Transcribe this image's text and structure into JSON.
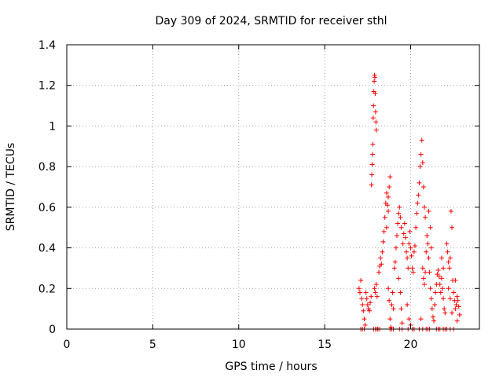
{
  "chart_data": {
    "type": "scatter",
    "title": "Day 309 of 2024, SRMTID for receiver sthl",
    "xlabel": "GPS time / hours",
    "ylabel": "SRMTID / TECUs",
    "xlim": [
      0,
      24
    ],
    "ylim": [
      0,
      1.4
    ],
    "x_ticks": [
      0,
      5,
      10,
      15,
      20
    ],
    "x_tick_labels": [
      "0",
      "5",
      "10",
      "15",
      "20"
    ],
    "y_ticks": [
      0,
      0.2,
      0.4,
      0.6,
      0.8,
      1,
      1.2,
      1.4
    ],
    "y_tick_labels": [
      "0",
      "0.2",
      "0.4",
      "0.6",
      "0.8",
      "1",
      "1.2",
      "1.4"
    ],
    "grid": true,
    "marker": "+",
    "colors": {
      "marker": "#ff0000",
      "grid": "#a0a0a0",
      "axis": "#000000"
    },
    "series": [
      {
        "name": "SRMTID",
        "points": [
          [
            17.0,
            0.2
          ],
          [
            17.05,
            0.18
          ],
          [
            17.1,
            0.24
          ],
          [
            17.15,
            0.15
          ],
          [
            17.2,
            0.12
          ],
          [
            17.25,
            0.09
          ],
          [
            17.3,
            0.05
          ],
          [
            17.35,
            0.02
          ],
          [
            17.1,
            0.0
          ],
          [
            17.2,
            0.0
          ],
          [
            17.3,
            0.0
          ],
          [
            17.4,
            0.18
          ],
          [
            17.45,
            0.15
          ],
          [
            17.5,
            0.12
          ],
          [
            17.55,
            0.1
          ],
          [
            17.6,
            0.09
          ],
          [
            17.65,
            0.13
          ],
          [
            17.7,
            0.16
          ],
          [
            17.72,
            0.71
          ],
          [
            17.74,
            0.76
          ],
          [
            17.76,
            0.81
          ],
          [
            17.78,
            0.86
          ],
          [
            17.8,
            0.91
          ],
          [
            17.82,
            1.04
          ],
          [
            17.84,
            1.1
          ],
          [
            17.86,
            1.17
          ],
          [
            17.88,
            1.22
          ],
          [
            17.9,
            1.25
          ],
          [
            17.92,
            1.24
          ],
          [
            17.94,
            1.16
          ],
          [
            17.96,
            1.07
          ],
          [
            17.98,
            1.02
          ],
          [
            18.0,
            0.98
          ],
          [
            17.9,
            0.2
          ],
          [
            17.95,
            0.18
          ],
          [
            18.0,
            0.22
          ],
          [
            18.05,
            0.16
          ],
          [
            17.85,
            0.0
          ],
          [
            17.95,
            0.0
          ],
          [
            18.05,
            0.0
          ],
          [
            18.1,
            0.0
          ],
          [
            18.2,
            0.0
          ],
          [
            18.15,
            0.28
          ],
          [
            18.2,
            0.31
          ],
          [
            18.25,
            0.35
          ],
          [
            18.3,
            0.32
          ],
          [
            18.35,
            0.38
          ],
          [
            18.4,
            0.43
          ],
          [
            18.45,
            0.48
          ],
          [
            18.5,
            0.55
          ],
          [
            18.55,
            0.62
          ],
          [
            18.6,
            0.67
          ],
          [
            18.65,
            0.61
          ],
          [
            18.7,
            0.65
          ],
          [
            18.75,
            0.7
          ],
          [
            18.8,
            0.75
          ],
          [
            18.7,
            0.58
          ],
          [
            18.6,
            0.5
          ],
          [
            18.7,
            0.2
          ],
          [
            18.75,
            0.14
          ],
          [
            18.8,
            0.05
          ],
          [
            18.85,
            0.01
          ],
          [
            18.9,
            0.12
          ],
          [
            18.95,
            0.18
          ],
          [
            19.0,
            0.1
          ],
          [
            18.8,
            0.0
          ],
          [
            18.9,
            0.0
          ],
          [
            19.0,
            0.0
          ],
          [
            19.05,
            0.3
          ],
          [
            19.1,
            0.33
          ],
          [
            19.15,
            0.4
          ],
          [
            19.2,
            0.46
          ],
          [
            19.25,
            0.52
          ],
          [
            19.3,
            0.57
          ],
          [
            19.35,
            0.6
          ],
          [
            19.4,
            0.55
          ],
          [
            19.45,
            0.5
          ],
          [
            19.3,
            0.25
          ],
          [
            19.4,
            0.18
          ],
          [
            19.45,
            0.1
          ],
          [
            19.5,
            0.03
          ],
          [
            19.35,
            0.0
          ],
          [
            19.5,
            0.0
          ],
          [
            19.55,
            0.42
          ],
          [
            19.6,
            0.47
          ],
          [
            19.65,
            0.52
          ],
          [
            19.7,
            0.45
          ],
          [
            19.75,
            0.38
          ],
          [
            19.8,
            0.35
          ],
          [
            19.85,
            0.3
          ],
          [
            19.9,
            0.42
          ],
          [
            19.95,
            0.48
          ],
          [
            20.0,
            0.4
          ],
          [
            20.05,
            0.36
          ],
          [
            20.1,
            0.3
          ],
          [
            20.15,
            0.28
          ],
          [
            20.2,
            0.38
          ],
          [
            20.25,
            0.41
          ],
          [
            19.8,
            0.12
          ],
          [
            19.9,
            0.05
          ],
          [
            20.0,
            0.02
          ],
          [
            19.85,
            0.0
          ],
          [
            20.1,
            0.0
          ],
          [
            20.2,
            0.0
          ],
          [
            20.3,
            0.5
          ],
          [
            20.35,
            0.57
          ],
          [
            20.4,
            0.62
          ],
          [
            20.45,
            0.66
          ],
          [
            20.5,
            0.72
          ],
          [
            20.55,
            0.8
          ],
          [
            20.6,
            0.86
          ],
          [
            20.65,
            0.93
          ],
          [
            20.7,
            0.82
          ],
          [
            20.75,
            0.7
          ],
          [
            20.8,
            0.6
          ],
          [
            20.85,
            0.55
          ],
          [
            20.7,
            0.3
          ],
          [
            20.75,
            0.25
          ],
          [
            20.8,
            0.22
          ],
          [
            20.85,
            0.28
          ],
          [
            20.6,
            0.05
          ],
          [
            20.5,
            0.0
          ],
          [
            20.7,
            0.0
          ],
          [
            20.9,
            0.0
          ],
          [
            21.0,
            0.0
          ],
          [
            21.1,
            0.0
          ],
          [
            20.9,
            0.38
          ],
          [
            20.95,
            0.46
          ],
          [
            21.0,
            0.42
          ],
          [
            21.05,
            0.35
          ],
          [
            21.1,
            0.28
          ],
          [
            21.15,
            0.2
          ],
          [
            21.2,
            0.15
          ],
          [
            21.25,
            0.1
          ],
          [
            21.3,
            0.06
          ],
          [
            21.35,
            0.04
          ],
          [
            21.2,
            0.4
          ],
          [
            21.15,
            0.5
          ],
          [
            21.05,
            0.58
          ],
          [
            21.4,
            0.12
          ],
          [
            21.45,
            0.18
          ],
          [
            21.5,
            0.22
          ],
          [
            21.55,
            0.27
          ],
          [
            21.6,
            0.29
          ],
          [
            21.65,
            0.26
          ],
          [
            21.7,
            0.22
          ],
          [
            21.75,
            0.18
          ],
          [
            21.8,
            0.25
          ],
          [
            21.85,
            0.2
          ],
          [
            21.9,
            0.15
          ],
          [
            21.95,
            0.1
          ],
          [
            22.0,
            0.08
          ],
          [
            21.8,
            0.35
          ],
          [
            21.9,
            0.3
          ],
          [
            21.5,
            0.0
          ],
          [
            21.6,
            0.0
          ],
          [
            21.7,
            0.0
          ],
          [
            21.9,
            0.0
          ],
          [
            22.0,
            0.0
          ],
          [
            22.1,
            0.42
          ],
          [
            22.15,
            0.38
          ],
          [
            22.2,
            0.33
          ],
          [
            22.25,
            0.3
          ],
          [
            22.3,
            0.35
          ],
          [
            22.35,
            0.58
          ],
          [
            22.4,
            0.5
          ],
          [
            22.45,
            0.24
          ],
          [
            22.5,
            0.18
          ],
          [
            22.55,
            0.14
          ],
          [
            22.6,
            0.1
          ],
          [
            22.65,
            0.12
          ],
          [
            22.7,
            0.16
          ],
          [
            22.75,
            0.14
          ],
          [
            22.8,
            0.11
          ],
          [
            22.85,
            0.07
          ],
          [
            22.2,
            0.2
          ],
          [
            22.3,
            0.15
          ],
          [
            22.4,
            0.08
          ],
          [
            22.6,
            0.24
          ],
          [
            22.7,
            0.04
          ],
          [
            22.1,
            0.0
          ],
          [
            22.3,
            0.0
          ],
          [
            22.5,
            0.0
          ]
        ]
      }
    ]
  }
}
